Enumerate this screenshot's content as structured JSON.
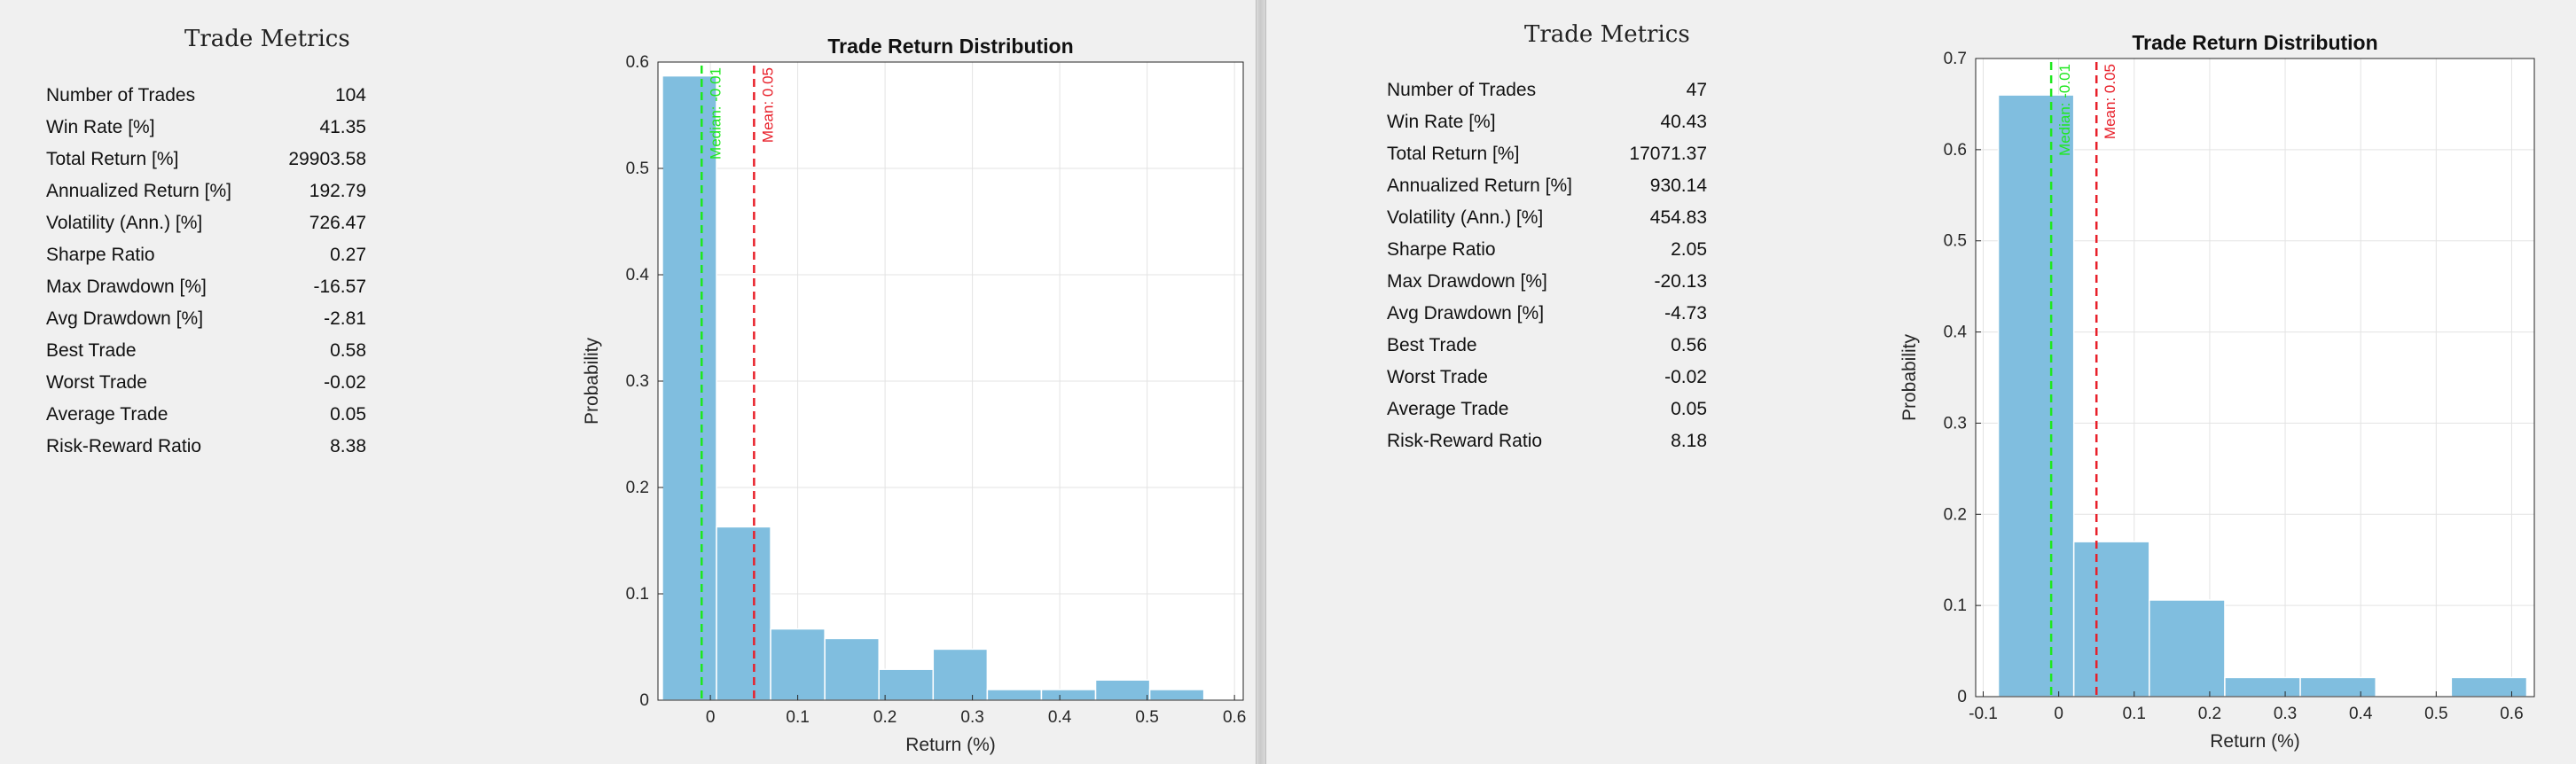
{
  "chart_data": [
    {
      "type": "table",
      "title": "Trade Metrics",
      "rows": [
        {
          "label": "Number of Trades",
          "value": "104"
        },
        {
          "label": "Win Rate [%]",
          "value": "41.35"
        },
        {
          "label": "Total Return [%]",
          "value": "29903.58"
        },
        {
          "label": "Annualized Return [%]",
          "value": "192.79"
        },
        {
          "label": "Volatility (Ann.) [%]",
          "value": "726.47"
        },
        {
          "label": "Sharpe Ratio",
          "value": "0.27"
        },
        {
          "label": "Max Drawdown [%]",
          "value": "-16.57"
        },
        {
          "label": "Avg Drawdown [%]",
          "value": "-2.81"
        },
        {
          "label": "Best Trade",
          "value": "0.58"
        },
        {
          "label": "Worst Trade",
          "value": "-0.02"
        },
        {
          "label": "Average Trade",
          "value": "0.05"
        },
        {
          "label": "Risk-Reward Ratio",
          "value": "8.38"
        }
      ]
    },
    {
      "type": "bar",
      "title": "Trade Return Distribution",
      "xlabel": "Return (%)",
      "ylabel": "Probability",
      "xlim": [
        -0.06,
        0.61
      ],
      "ylim": [
        0,
        0.6
      ],
      "xticks": [
        0,
        0.1,
        0.2,
        0.3,
        0.4,
        0.5,
        0.6
      ],
      "xtick_labels": [
        "0",
        "0.1",
        "0.2",
        "0.3",
        "0.4",
        "0.5",
        "0.6"
      ],
      "yticks": [
        0,
        0.1,
        0.2,
        0.3,
        0.4,
        0.5,
        0.6
      ],
      "ytick_labels": [
        "0",
        "0.1",
        "0.2",
        "0.3",
        "0.4",
        "0.5",
        "0.6"
      ],
      "grid": true,
      "bar_color": "#80bedf",
      "bins": [
        {
          "x0": -0.055,
          "x1": 0.007,
          "value": 0.587
        },
        {
          "x0": 0.007,
          "x1": 0.069,
          "value": 0.163
        },
        {
          "x0": 0.069,
          "x1": 0.131,
          "value": 0.067
        },
        {
          "x0": 0.131,
          "x1": 0.193,
          "value": 0.058
        },
        {
          "x0": 0.193,
          "x1": 0.255,
          "value": 0.029
        },
        {
          "x0": 0.255,
          "x1": 0.317,
          "value": 0.048
        },
        {
          "x0": 0.317,
          "x1": 0.379,
          "value": 0.01
        },
        {
          "x0": 0.379,
          "x1": 0.441,
          "value": 0.01
        },
        {
          "x0": 0.441,
          "x1": 0.503,
          "value": 0.019
        },
        {
          "x0": 0.503,
          "x1": 0.565,
          "value": 0.01
        }
      ],
      "reference_lines": [
        {
          "label": "Median: -0.01",
          "x": -0.01,
          "color": "#1ee81e"
        },
        {
          "label": "Mean: 0.05",
          "x": 0.05,
          "color": "#e8202a"
        }
      ]
    },
    {
      "type": "table",
      "title": "Trade Metrics",
      "rows": [
        {
          "label": "Number of Trades",
          "value": "47"
        },
        {
          "label": "Win Rate [%]",
          "value": "40.43"
        },
        {
          "label": "Total Return [%]",
          "value": "17071.37"
        },
        {
          "label": "Annualized Return [%]",
          "value": "930.14"
        },
        {
          "label": "Volatility (Ann.) [%]",
          "value": "454.83"
        },
        {
          "label": "Sharpe Ratio",
          "value": "2.05"
        },
        {
          "label": "Max Drawdown [%]",
          "value": "-20.13"
        },
        {
          "label": "Avg Drawdown [%]",
          "value": "-4.73"
        },
        {
          "label": "Best Trade",
          "value": "0.56"
        },
        {
          "label": "Worst Trade",
          "value": "-0.02"
        },
        {
          "label": "Average Trade",
          "value": "0.05"
        },
        {
          "label": "Risk-Reward Ratio",
          "value": "8.18"
        }
      ]
    },
    {
      "type": "bar",
      "title": "Trade Return Distribution",
      "xlabel": "Return (%)",
      "ylabel": "Probability",
      "xlim": [
        -0.11,
        0.63
      ],
      "ylim": [
        0,
        0.7
      ],
      "xticks": [
        -0.1,
        0,
        0.1,
        0.2,
        0.3,
        0.4,
        0.5,
        0.6
      ],
      "xtick_labels": [
        "-0.1",
        "0",
        "0.1",
        "0.2",
        "0.3",
        "0.4",
        "0.5",
        "0.6"
      ],
      "yticks": [
        0,
        0.1,
        0.2,
        0.3,
        0.4,
        0.5,
        0.6,
        0.7
      ],
      "ytick_labels": [
        "0",
        "0.1",
        "0.2",
        "0.3",
        "0.4",
        "0.5",
        "0.6",
        "0.7"
      ],
      "grid": true,
      "bar_color": "#80bedf",
      "bins": [
        {
          "x0": -0.08,
          "x1": 0.02,
          "value": 0.66
        },
        {
          "x0": 0.02,
          "x1": 0.12,
          "value": 0.17
        },
        {
          "x0": 0.12,
          "x1": 0.22,
          "value": 0.106
        },
        {
          "x0": 0.22,
          "x1": 0.32,
          "value": 0.021
        },
        {
          "x0": 0.32,
          "x1": 0.42,
          "value": 0.021
        },
        {
          "x0": 0.42,
          "x1": 0.52,
          "value": 0
        },
        {
          "x0": 0.52,
          "x1": 0.62,
          "value": 0.021
        }
      ],
      "reference_lines": [
        {
          "label": "Median: -0.01",
          "x": -0.01,
          "color": "#1ee81e"
        },
        {
          "label": "Mean: 0.05",
          "x": 0.05,
          "color": "#e8202a"
        }
      ]
    }
  ]
}
